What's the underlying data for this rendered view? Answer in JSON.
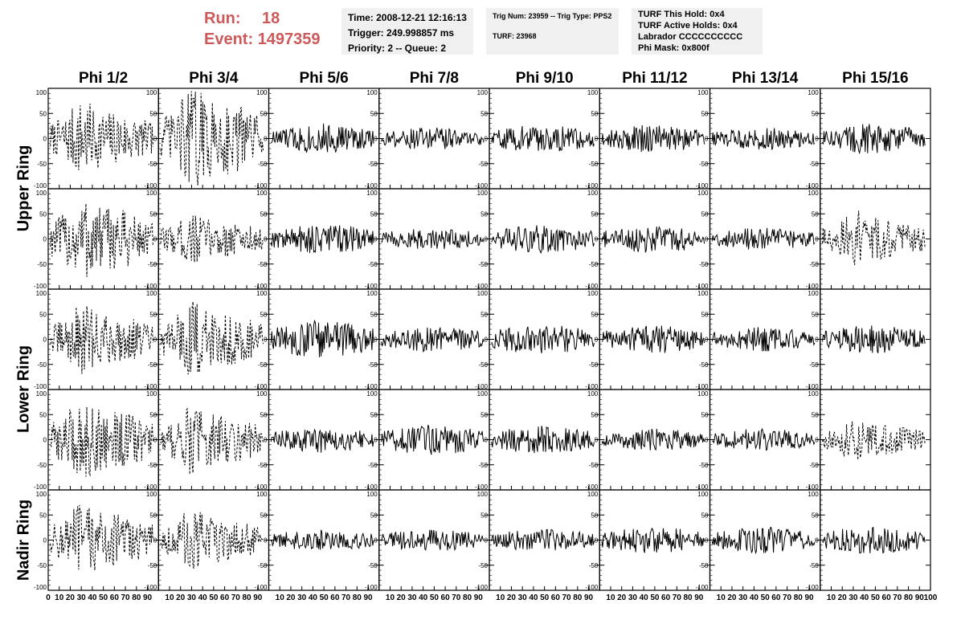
{
  "header": {
    "run_label": "Run:",
    "run_value": "18",
    "event_label": "Event:",
    "event_value": "1497359"
  },
  "info_boxes": {
    "time": {
      "line1": "Time: 2008-12-21 12:16:13",
      "line2": "Trigger: 249.998857 ms",
      "line3": "Priority: 2 -- Queue: 2"
    },
    "trig": {
      "line1": "Trig Num: 23959 -- Trig Type: PPS2",
      "line2": "TURF: 23968"
    },
    "turf": {
      "line1": "TURF This Hold: 0x4",
      "line2": "TURF Active Holds: 0x4",
      "line3": "Labrador CCCCCCCCCC",
      "line4": "Phi Mask: 0x800f"
    }
  },
  "columns": [
    "Phi 1/2",
    "Phi 3/4",
    "Phi 5/6",
    "Phi 7/8",
    "Phi 9/10",
    "Phi 11/12",
    "Phi 13/14",
    "Phi 15/16"
  ],
  "rows": [
    "Upper Ring",
    "Lower Ring",
    "Nadir Ring"
  ],
  "chart_data": {
    "type": "line",
    "layout": "grid 5 rows x 8 columns of waveform panels",
    "rows_per_ring": {
      "Upper Ring": [
        0,
        1
      ],
      "Lower Ring": [
        2,
        3
      ],
      "Nadir Ring": [
        4
      ]
    },
    "x_ticks": [
      0,
      10,
      20,
      30,
      40,
      50,
      60,
      70,
      80,
      90,
      100
    ],
    "x_tick_labels": [
      "0",
      "10",
      "20",
      "30",
      "40",
      "50",
      "60",
      "70",
      "80",
      "90",
      "100"
    ],
    "ylim": [
      -100,
      100
    ],
    "y_ticks": [
      -100,
      -50,
      0,
      50,
      100
    ],
    "y_tick_labels": [
      "-100",
      "-50",
      "0",
      "50",
      "100"
    ],
    "grid": false,
    "line_color": "#000000",
    "dashed_panels": [
      [
        0,
        0
      ],
      [
        0,
        1
      ],
      [
        1,
        0
      ],
      [
        1,
        1
      ],
      [
        1,
        7
      ],
      [
        2,
        0
      ],
      [
        2,
        1
      ],
      [
        3,
        0
      ],
      [
        3,
        1
      ],
      [
        3,
        7
      ],
      [
        4,
        0
      ],
      [
        4,
        1
      ]
    ],
    "amplitude": [
      [
        55,
        75,
        30,
        22,
        28,
        28,
        22,
        30
      ],
      [
        65,
        38,
        30,
        22,
        28,
        28,
        22,
        42
      ],
      [
        50,
        55,
        38,
        25,
        30,
        28,
        25,
        28
      ],
      [
        60,
        50,
        26,
        30,
        28,
        22,
        22,
        30
      ],
      [
        55,
        45,
        22,
        22,
        22,
        26,
        26,
        28
      ]
    ],
    "waveform_samples": 128
  }
}
